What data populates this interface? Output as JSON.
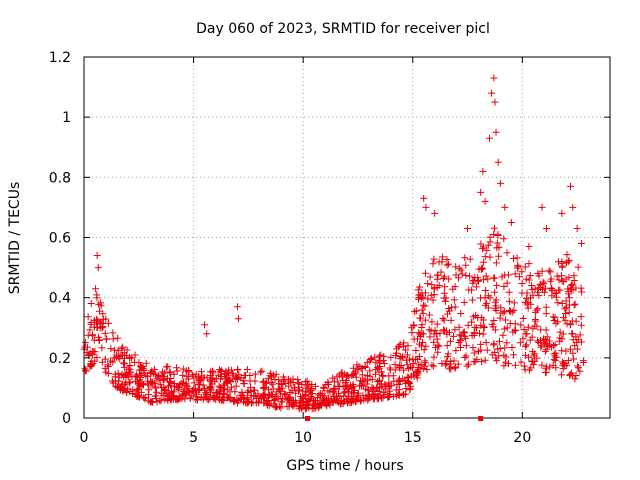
{
  "chart_data": {
    "type": "scatter",
    "title": "Day 060 of 2023, SRMTID for receiver picl",
    "xlabel": "GPS time / hours",
    "ylabel": "SRMTID / TECUs",
    "xlim": [
      0,
      24
    ],
    "ylim": [
      0,
      1.2
    ],
    "x_ticks": [
      "0",
      "5",
      "10",
      "15",
      "20"
    ],
    "x_tick_values": [
      0,
      5,
      10,
      15,
      20
    ],
    "y_ticks": [
      "0",
      "0.2",
      "0.4",
      "0.6",
      "0.8",
      "1",
      "1.2"
    ],
    "y_tick_values": [
      0,
      0.2,
      0.4,
      0.6,
      0.8,
      1.0,
      1.2
    ],
    "grid": true,
    "marker": "+",
    "color": "#e8000b",
    "baseline_markers_x": [
      10.2,
      18.1
    ],
    "envelope": {
      "x": [
        0,
        0.5,
        1,
        1.5,
        2,
        2.5,
        3,
        4,
        5,
        6,
        7,
        8,
        9,
        10,
        10.5,
        11,
        12,
        13,
        14,
        14.8,
        15,
        15.5,
        16,
        17,
        18,
        18.5,
        19,
        20,
        21,
        22,
        22.8
      ],
      "low": [
        0.15,
        0.18,
        0.15,
        0.1,
        0.08,
        0.07,
        0.05,
        0.06,
        0.06,
        0.06,
        0.05,
        0.05,
        0.03,
        0.03,
        0.03,
        0.04,
        0.05,
        0.06,
        0.07,
        0.08,
        0.12,
        0.15,
        0.17,
        0.16,
        0.18,
        0.18,
        0.17,
        0.16,
        0.15,
        0.14,
        0.14
      ],
      "high": [
        0.42,
        0.5,
        0.33,
        0.28,
        0.24,
        0.2,
        0.18,
        0.17,
        0.16,
        0.16,
        0.17,
        0.16,
        0.15,
        0.13,
        0.11,
        0.12,
        0.16,
        0.2,
        0.23,
        0.26,
        0.35,
        0.5,
        0.55,
        0.52,
        0.56,
        0.65,
        0.62,
        0.52,
        0.5,
        0.55,
        0.5
      ]
    },
    "outliers": [
      {
        "x": 0.6,
        "y": 0.54
      },
      {
        "x": 0.65,
        "y": 0.5
      },
      {
        "x": 5.5,
        "y": 0.31
      },
      {
        "x": 5.6,
        "y": 0.28
      },
      {
        "x": 7.0,
        "y": 0.37
      },
      {
        "x": 7.05,
        "y": 0.33
      },
      {
        "x": 15.5,
        "y": 0.73
      },
      {
        "x": 15.6,
        "y": 0.7
      },
      {
        "x": 16.0,
        "y": 0.68
      },
      {
        "x": 17.5,
        "y": 0.63
      },
      {
        "x": 18.1,
        "y": 0.75
      },
      {
        "x": 18.2,
        "y": 0.82
      },
      {
        "x": 18.3,
        "y": 0.72
      },
      {
        "x": 18.5,
        "y": 0.93
      },
      {
        "x": 18.6,
        "y": 1.08
      },
      {
        "x": 18.7,
        "y": 1.13
      },
      {
        "x": 18.75,
        "y": 1.05
      },
      {
        "x": 18.8,
        "y": 0.95
      },
      {
        "x": 18.9,
        "y": 0.85
      },
      {
        "x": 19.0,
        "y": 0.78
      },
      {
        "x": 19.2,
        "y": 0.7
      },
      {
        "x": 19.5,
        "y": 0.65
      },
      {
        "x": 20.3,
        "y": 0.57
      },
      {
        "x": 20.9,
        "y": 0.7
      },
      {
        "x": 21.1,
        "y": 0.63
      },
      {
        "x": 21.8,
        "y": 0.68
      },
      {
        "x": 22.2,
        "y": 0.77
      },
      {
        "x": 22.3,
        "y": 0.7
      },
      {
        "x": 22.5,
        "y": 0.63
      },
      {
        "x": 22.7,
        "y": 0.58
      },
      {
        "x": 22.4,
        "y": 0.13
      }
    ],
    "sample_count": 1500
  }
}
